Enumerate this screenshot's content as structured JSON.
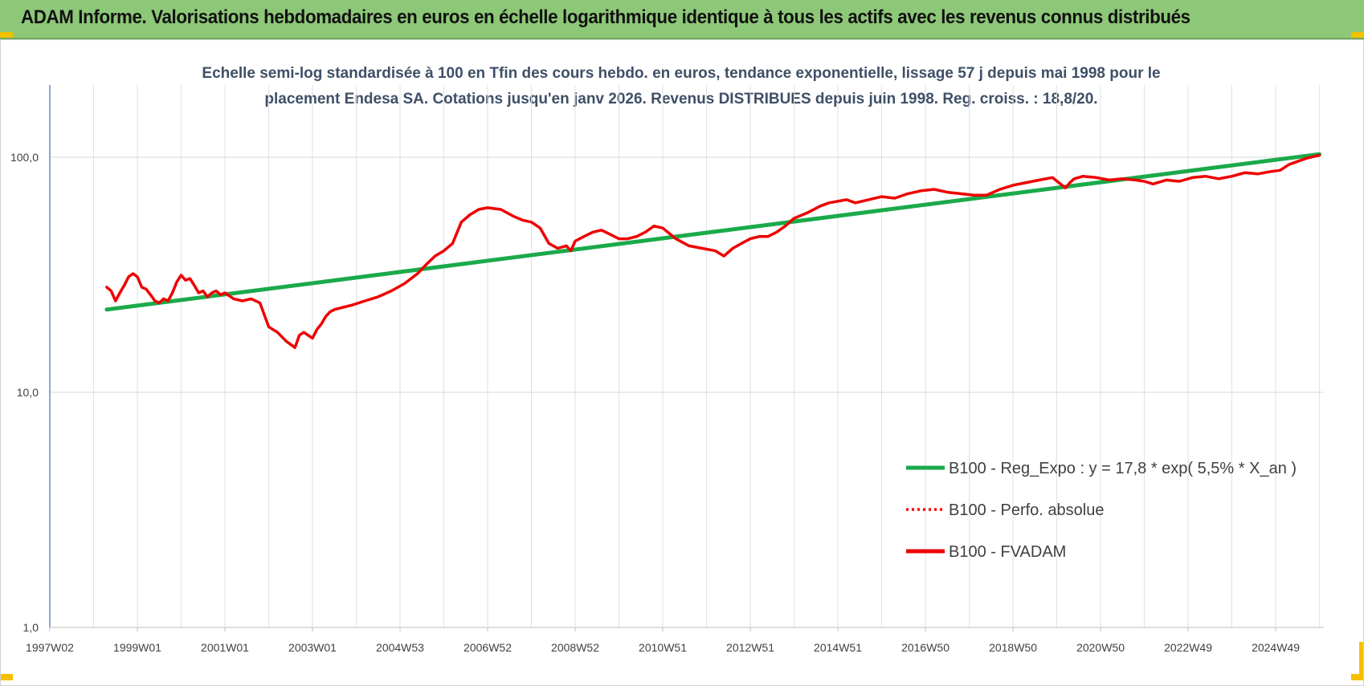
{
  "header": {
    "title": "ADAM Informe. Valorisations hebdomadaires en euros en échelle logarithmique identique à tous les actifs avec les revenus connus distribués"
  },
  "chart_data": {
    "type": "line",
    "title": "Echelle semi-log standardisée à 100 en Tfin des cours hebdo. en euros, tendance exponentielle, lissage 57 j depuis mai 1998 pour le placement Endesa SA. Cotations jusqu'en janv 2026. Revenus DISTRIBUES depuis juin 1998.  Reg. croiss. : 18,8/20.",
    "title_lines": [
      "Echelle semi-log standardisée à 100 en Tfin des cours hebdo. en euros, tendance exponentielle, lissage 57 j depuis mai 1998 pour le",
      "placement Endesa SA. Cotations jusqu'en janv 2026. Revenus DISTRIBUES  depuis juin 1998.  Reg. croiss. : 18,8/20."
    ],
    "y_scale": "log",
    "ylim": [
      1,
      200
    ],
    "y_ticks": [
      1,
      10,
      100
    ],
    "y_tick_labels": [
      "1,0",
      "10,0",
      "100,0"
    ],
    "xlim": [
      1997.0,
      2026.1
    ],
    "x_tick_labels": [
      "1997W02",
      "1999W01",
      "2001W01",
      "2003W01",
      "2004W53",
      "2006W52",
      "2008W52",
      "2010W51",
      "2012W51",
      "2014W51",
      "2016W50",
      "2018W50",
      "2020W50",
      "2022W49",
      "2024W49"
    ],
    "x_tick_values": [
      1997.0,
      1999.0,
      2001.0,
      2003.0,
      2005.0,
      2007.0,
      2009.0,
      2011.0,
      2013.0,
      2015.0,
      2017.0,
      2019.0,
      2021.0,
      2023.0,
      2025.0
    ],
    "grid": true,
    "legend_position": "bottom-right",
    "series": [
      {
        "name": "B100 - Reg_Expo : y = 17,8 * exp( 5,5% *  X_an )",
        "color": "#1aaa4a",
        "style": "solid",
        "x": [
          1998.3,
          2026.0
        ],
        "y": [
          22.5,
          103
        ]
      },
      {
        "name": "B100 - Perfo. absolue",
        "color": "#ff0000",
        "style": "dotted",
        "x": [],
        "y": []
      },
      {
        "name": "B100 - FVADAM",
        "color": "#ee0000",
        "style": "solid",
        "x": [
          1998.3,
          1998.4,
          1998.5,
          1998.6,
          1998.7,
          1998.8,
          1998.9,
          1999.0,
          1999.1,
          1999.2,
          1999.3,
          1999.4,
          1999.5,
          1999.6,
          1999.7,
          1999.8,
          1999.9,
          2000.0,
          2000.1,
          2000.2,
          2000.3,
          2000.4,
          2000.5,
          2000.6,
          2000.7,
          2000.8,
          2000.9,
          2001.0,
          2001.2,
          2001.4,
          2001.6,
          2001.8,
          2002.0,
          2002.2,
          2002.4,
          2002.6,
          2002.7,
          2002.8,
          2002.9,
          2003.0,
          2003.1,
          2003.2,
          2003.3,
          2003.4,
          2003.5,
          2003.7,
          2003.9,
          2004.2,
          2004.5,
          2004.8,
          2005.1,
          2005.4,
          2005.6,
          2005.8,
          2006.0,
          2006.2,
          2006.4,
          2006.6,
          2006.8,
          2007.0,
          2007.3,
          2007.6,
          2007.8,
          2008.0,
          2008.2,
          2008.4,
          2008.6,
          2008.8,
          2008.9,
          2009.0,
          2009.2,
          2009.4,
          2009.6,
          2009.8,
          2010.0,
          2010.2,
          2010.4,
          2010.6,
          2010.8,
          2011.0,
          2011.3,
          2011.6,
          2011.9,
          2012.2,
          2012.4,
          2012.6,
          2012.8,
          2013.0,
          2013.2,
          2013.4,
          2013.6,
          2013.8,
          2014.0,
          2014.3,
          2014.6,
          2014.8,
          2015.0,
          2015.2,
          2015.4,
          2015.7,
          2016.0,
          2016.3,
          2016.6,
          2016.9,
          2017.2,
          2017.5,
          2017.8,
          2018.1,
          2018.4,
          2018.7,
          2019.0,
          2019.3,
          2019.6,
          2019.9,
          2020.2,
          2020.3,
          2020.4,
          2020.6,
          2020.9,
          2021.2,
          2021.5,
          2021.8,
          2022.0,
          2022.2,
          2022.5,
          2022.8,
          2023.1,
          2023.4,
          2023.7,
          2024.0,
          2024.3,
          2024.6,
          2024.9,
          2025.1,
          2025.3,
          2025.5,
          2025.7,
          2025.9,
          2026.0
        ],
        "y": [
          28,
          27,
          24.5,
          26.5,
          28.5,
          31,
          32,
          31,
          28,
          27.5,
          26,
          24.5,
          24,
          25,
          24.5,
          26.5,
          29.5,
          31.5,
          30,
          30.5,
          28.5,
          26.5,
          27,
          25.5,
          26.5,
          27,
          26,
          26.5,
          25,
          24.5,
          25,
          24,
          19,
          18,
          16.5,
          15.5,
          17.5,
          18,
          17.5,
          17,
          18.5,
          19.5,
          21,
          22,
          22.5,
          23,
          23.5,
          24.5,
          25.5,
          27,
          29,
          32,
          35,
          38,
          40,
          43,
          53,
          57,
          60,
          61,
          60,
          56,
          54,
          53,
          50,
          43,
          41,
          42,
          40,
          44,
          46,
          48,
          49,
          47,
          45,
          45,
          46,
          48,
          51,
          50,
          45,
          42,
          41,
          40,
          38,
          41,
          43,
          45,
          46,
          46,
          48,
          51,
          55,
          58,
          62,
          64,
          65,
          66,
          64,
          66,
          68,
          67,
          70,
          72,
          73,
          71,
          70,
          69,
          69,
          73,
          76,
          78,
          80,
          82,
          74,
          78,
          81,
          83,
          82,
          80,
          81,
          80,
          79,
          77,
          80,
          79,
          82,
          83,
          81,
          83,
          86,
          85,
          87,
          88,
          93,
          96,
          99,
          101,
          102
        ]
      }
    ]
  }
}
